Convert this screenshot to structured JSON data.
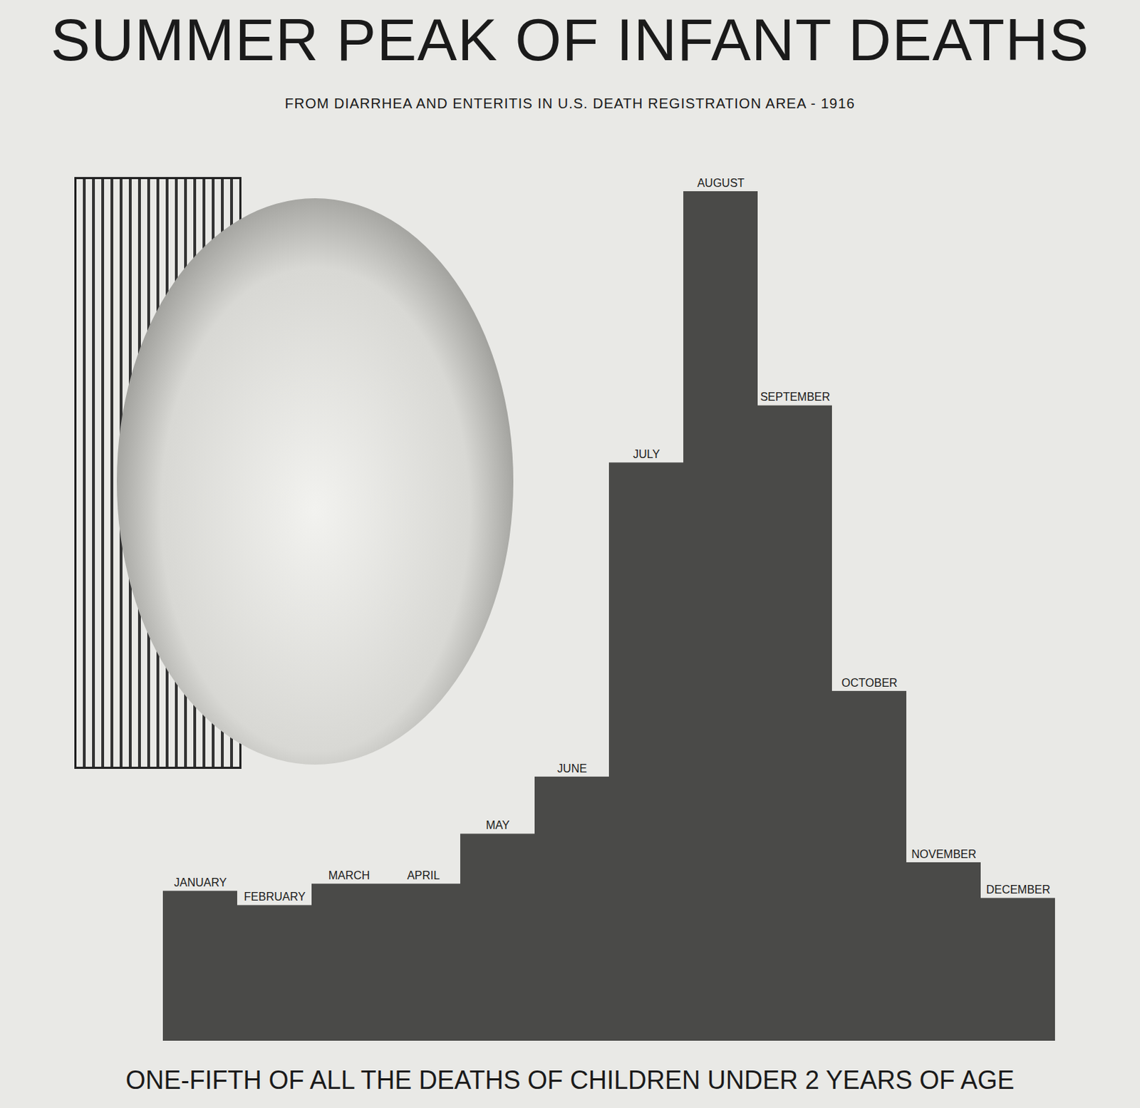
{
  "chart_data": {
    "type": "bar",
    "title": "SUMMER PEAK OF INFANT DEATHS",
    "subtitle": "FROM DIARRHEA AND ENTERITIS IN U.S. DEATH REGISTRATION AREA - 1916",
    "caption": "ONE-FIFTH OF ALL THE DEATHS OF CHILDREN UNDER 2 YEARS OF AGE",
    "categories": [
      "JANUARY",
      "FEBRUARY",
      "MARCH",
      "APRIL",
      "MAY",
      "JUNE",
      "JULY",
      "AUGUST",
      "SEPTEMBER",
      "OCTOBER",
      "NOVEMBER",
      "DECEMBER"
    ],
    "values": [
      21,
      19,
      22,
      22,
      29,
      37,
      81,
      119,
      89,
      49,
      25,
      20
    ],
    "color": "#4a4a48",
    "ylim": [
      0,
      120
    ],
    "tick_labels": false
  }
}
